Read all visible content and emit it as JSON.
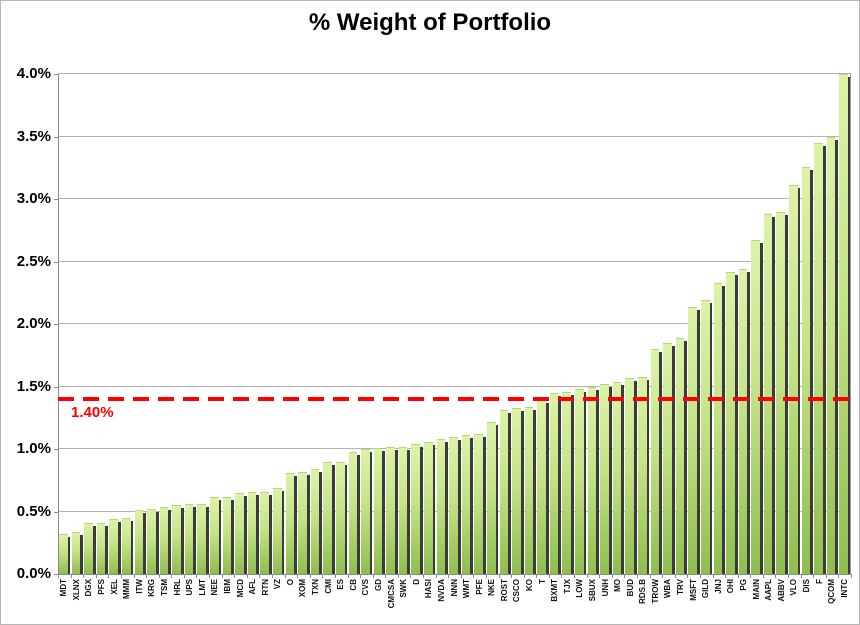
{
  "title": "% Weight of Portfolio",
  "chart_data": {
    "type": "bar",
    "title": "% Weight of Portfolio",
    "xlabel": "",
    "ylabel": "",
    "ylim": [
      0,
      4.0
    ],
    "grid": "horizontal",
    "legend": "none",
    "y_ticks": [
      "0.0%",
      "0.5%",
      "1.0%",
      "1.5%",
      "2.0%",
      "2.5%",
      "3.0%",
      "3.5%",
      "4.0%"
    ],
    "y_tick_values": [
      0,
      0.5,
      1.0,
      1.5,
      2.0,
      2.5,
      3.0,
      3.5,
      4.0
    ],
    "categories": [
      "MDT",
      "XLNX",
      "DGX",
      "PFS",
      "XEL",
      "MMM",
      "ITW",
      "KRG",
      "TSM",
      "HRL",
      "UPS",
      "LMT",
      "NEE",
      "IBM",
      "MCD",
      "AFL",
      "RTN",
      "VZ",
      "O",
      "XOM",
      "TXN",
      "CMI",
      "ES",
      "CB",
      "CVS",
      "GD",
      "CMCSA",
      "SWK",
      "D",
      "HASI",
      "NVDA",
      "NNN",
      "WMT",
      "PFE",
      "NKE",
      "ROST",
      "CSCO",
      "KO",
      "T",
      "BXMT",
      "TJX",
      "LOW",
      "SBUX",
      "UNH",
      "MO",
      "BUD",
      "RDS.B",
      "TROW",
      "WBA",
      "TRV",
      "MSFT",
      "GILD",
      "JNJ",
      "OHI",
      "PG",
      "MAIN",
      "AAPL",
      "ABBV",
      "VLO",
      "DIS",
      "F",
      "QCOM",
      "INTC"
    ],
    "values": [
      0.32,
      0.34,
      0.41,
      0.41,
      0.44,
      0.45,
      0.51,
      0.52,
      0.54,
      0.55,
      0.56,
      0.56,
      0.62,
      0.62,
      0.65,
      0.66,
      0.66,
      0.69,
      0.81,
      0.82,
      0.84,
      0.9,
      0.9,
      0.98,
      1.0,
      1.01,
      1.02,
      1.02,
      1.04,
      1.06,
      1.08,
      1.1,
      1.11,
      1.12,
      1.22,
      1.31,
      1.33,
      1.34,
      1.39,
      1.45,
      1.46,
      1.48,
      1.5,
      1.52,
      1.54,
      1.57,
      1.58,
      1.8,
      1.85,
      1.89,
      2.14,
      2.19,
      2.33,
      2.42,
      2.44,
      2.67,
      2.88,
      2.9,
      3.11,
      3.26,
      3.45,
      3.5,
      4.0
    ],
    "reference_line": {
      "value": 1.4,
      "label": "1.40%",
      "color": "#ff0000",
      "style": "dashed"
    },
    "colors": {
      "bar_gradient_top": "#dcf3a8",
      "bar_gradient_bottom": "#8ebe4e",
      "bar_shadow": "#3b3b3b",
      "gridline": "#b3b3b3",
      "axis": "#8c8c8c",
      "background": "#ffffff",
      "border": "#b7b7b7",
      "title_text": "#000000"
    }
  }
}
